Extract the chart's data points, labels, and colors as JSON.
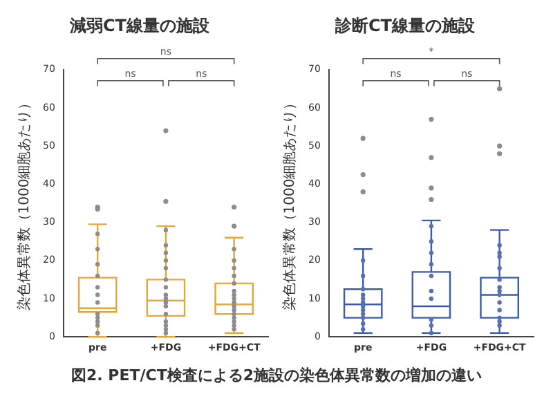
{
  "chart_data": [
    {
      "type": "box",
      "title": "減弱CT線量の施設",
      "ylabel": "染色体異常数（1000細胞あたり）",
      "categories": [
        "pre",
        "+FDG",
        "+FDG+CT"
      ],
      "ylim": [
        0,
        70
      ],
      "yticks": [
        0,
        10,
        20,
        30,
        40,
        50,
        60,
        70
      ],
      "grid": false,
      "legend": false,
      "series": [
        {
          "type": "box",
          "color": "#e8a53a",
          "boxes": [
            {
              "low": 0,
              "q1": 6.5,
              "median": 7.5,
              "q3": 15.5,
              "high": 29.5,
              "outliers": [
                33.5,
                34
              ]
            },
            {
              "low": 0,
              "q1": 5.5,
              "median": 9.5,
              "q3": 15,
              "high": 29,
              "outliers": [
                35.5,
                54
              ]
            },
            {
              "low": 1,
              "q1": 6,
              "median": 8.5,
              "q3": 14,
              "high": 26,
              "outliers": [
                29,
                34
              ]
            }
          ]
        },
        {
          "type": "scatter",
          "color": "#8c8c8c",
          "marker": "circle",
          "x": [
            "pre",
            "pre",
            "pre",
            "pre",
            "pre",
            "pre",
            "pre",
            "pre",
            "pre",
            "pre",
            "pre",
            "pre",
            "+FDG",
            "+FDG",
            "+FDG",
            "+FDG",
            "+FDG",
            "+FDG",
            "+FDG",
            "+FDG",
            "+FDG",
            "+FDG",
            "+FDG",
            "+FDG",
            "+FDG",
            "+FDG",
            "+FDG",
            "+FDG",
            "+FDG+CT",
            "+FDG+CT",
            "+FDG+CT",
            "+FDG+CT",
            "+FDG+CT",
            "+FDG+CT",
            "+FDG+CT",
            "+FDG+CT",
            "+FDG+CT",
            "+FDG+CT",
            "+FDG+CT",
            "+FDG+CT",
            "+FDG+CT",
            "+FDG+CT",
            "+FDG+CT",
            "+FDG+CT"
          ],
          "values": [
            1,
            3,
            4,
            5,
            6,
            9,
            11,
            13,
            16,
            19,
            23,
            27,
            1,
            2,
            3,
            4,
            6,
            8,
            9,
            10,
            11,
            13,
            15,
            18,
            20,
            22,
            24,
            28,
            2,
            3,
            4,
            5,
            6,
            7,
            8,
            9,
            10,
            11,
            12,
            14,
            16,
            18,
            20,
            23
          ]
        }
      ],
      "annotations": [
        "ns",
        "ns",
        "ns",
        "図2. PET/CT検査による2施設の染色体異常数の増加の違い"
      ]
    },
    {
      "type": "box",
      "title": "診断CT線量の施設",
      "ylabel": "染色体異常数（1000細胞あたり）",
      "categories": [
        "pre",
        "+FDG",
        "+FDG+CT"
      ],
      "ylim": [
        0,
        70
      ],
      "yticks": [
        0,
        10,
        20,
        30,
        40,
        50,
        60,
        70
      ],
      "grid": false,
      "legend": false,
      "series": [
        {
          "type": "box",
          "color": "#3a5bb5",
          "boxes": [
            {
              "low": 1,
              "q1": 5,
              "median": 8.5,
              "q3": 12.5,
              "high": 23,
              "outliers": [
                38,
                42.5,
                52
              ]
            },
            {
              "low": 1,
              "q1": 5,
              "median": 8,
              "q3": 17,
              "high": 30.5,
              "outliers": [
                36,
                39,
                47,
                57
              ]
            },
            {
              "low": 1,
              "q1": 5,
              "median": 11,
              "q3": 15.5,
              "high": 28,
              "outliers": [
                48,
                50,
                65
              ]
            }
          ]
        },
        {
          "type": "scatter",
          "color": "#5a6fae",
          "marker": "circle",
          "x": [
            "pre",
            "pre",
            "pre",
            "pre",
            "pre",
            "pre",
            "pre",
            "pre",
            "pre",
            "pre",
            "pre",
            "pre",
            "+FDG",
            "+FDG",
            "+FDG",
            "+FDG",
            "+FDG",
            "+FDG",
            "+FDG",
            "+FDG",
            "+FDG",
            "+FDG",
            "+FDG+CT",
            "+FDG+CT",
            "+FDG+CT",
            "+FDG+CT",
            "+FDG+CT",
            "+FDG+CT",
            "+FDG+CT",
            "+FDG+CT",
            "+FDG+CT",
            "+FDG+CT",
            "+FDG+CT",
            "+FDG+CT",
            "+FDG+CT"
          ],
          "values": [
            2,
            3.5,
            5,
            6,
            7,
            8,
            9,
            10,
            11,
            12.5,
            16,
            20,
            1,
            3,
            4.5,
            10,
            12,
            16,
            19,
            22,
            25,
            29,
            3,
            4,
            5,
            7,
            9,
            11,
            12,
            13,
            15,
            18,
            21,
            22,
            24
          ]
        }
      ],
      "annotations": [
        "*",
        "ns",
        "ns"
      ]
    }
  ]
}
